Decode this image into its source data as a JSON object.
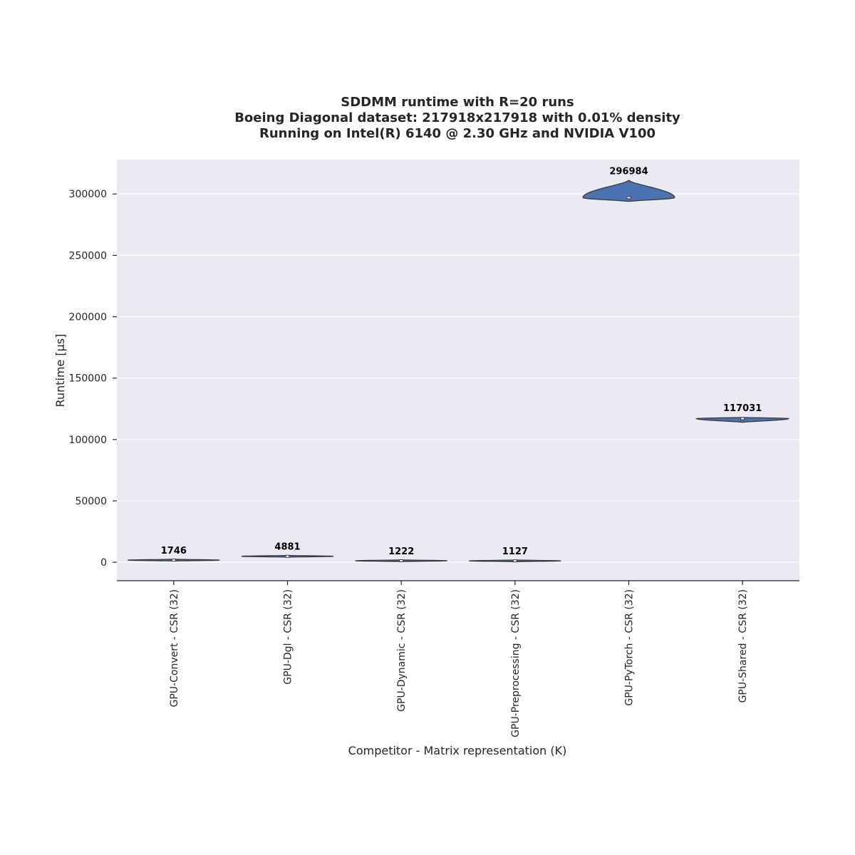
{
  "chart_data": {
    "type": "violin",
    "title_lines": [
      "SDDMM runtime with R=20 runs",
      "Boeing Diagonal dataset: 217918x217918 with 0.01% density",
      "Running on Intel(R) 6140 @ 2.30 GHz and NVIDIA V100"
    ],
    "xlabel": "Competitor - Matrix representation (K)",
    "ylabel": "Runtime [µs]",
    "ylim": [
      -15000,
      328000
    ],
    "yticks": [
      0,
      50000,
      100000,
      150000,
      200000,
      250000,
      300000
    ],
    "ytick_labels": [
      "0",
      "50000",
      "100000",
      "150000",
      "200000",
      "250000",
      "300000"
    ],
    "grid": true,
    "categories": [
      "GPU-Convert - CSR (32)",
      "GPU-Dgl - CSR (32)",
      "GPU-Dynamic - CSR (32)",
      "GPU-Preprocessing - CSR (32)",
      "GPU-PyTorch - CSR (32)",
      "GPU-Shared - CSR (32)"
    ],
    "medians": [
      1746,
      4881,
      1222,
      1127,
      296984,
      117031
    ],
    "median_labels": [
      "1746",
      "4881",
      "1222",
      "1127",
      "296984",
      "117031"
    ],
    "value_min": [
      1600,
      4750,
      1100,
      1000,
      294000,
      114000
    ],
    "value_max": [
      1900,
      5000,
      1350,
      1250,
      311000,
      118000
    ],
    "colors": {
      "violin_fill": "#4c72b0",
      "violin_edge": "#3a3a3a",
      "plot_bg": "#eaeaf2",
      "grid": "#ffffff"
    }
  }
}
